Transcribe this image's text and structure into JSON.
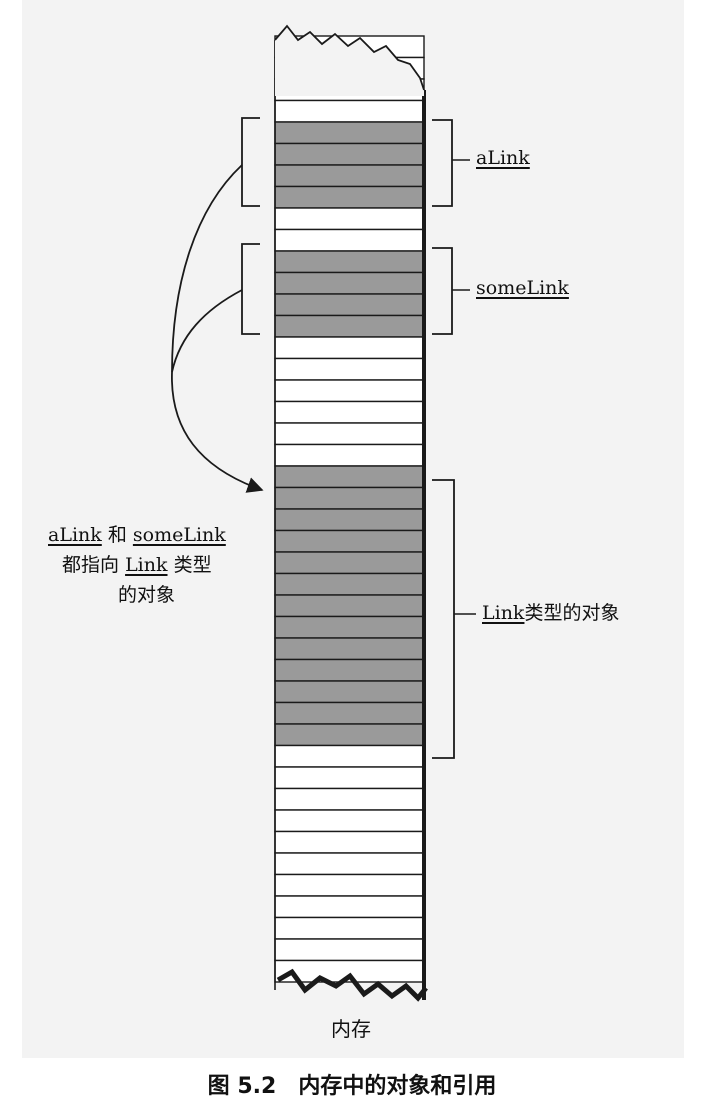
{
  "labels": {
    "alink": "aLink",
    "somelink": "someLink",
    "link_object": {
      "name": "Link",
      "text": "类型的对象"
    },
    "pointer_note": {
      "line1_a": "aLink",
      "line1_b": "和",
      "line1_c": "someLink",
      "line2_a": "都指向",
      "line2_b": "Link",
      "line2_c": "类型",
      "line3": "的对象"
    },
    "memory": "内存"
  },
  "caption": {
    "figure": "图 5.2",
    "title": "内存中的对象和引用"
  },
  "colors": {
    "cell_fill": "#ffffff",
    "highlight_fill": "#9a9a9a",
    "line": "#1a1a1a",
    "paper": "#f3f3f3"
  }
}
